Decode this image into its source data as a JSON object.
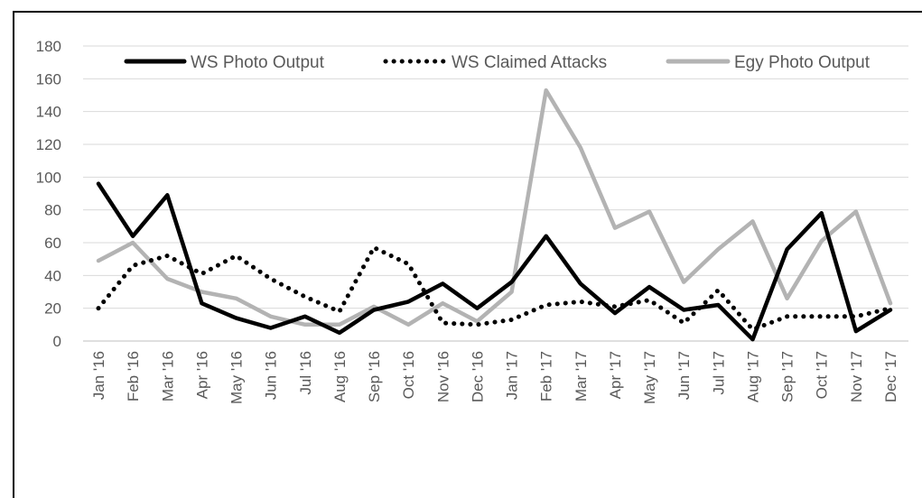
{
  "chart_data": {
    "type": "line",
    "title": "",
    "xlabel": "",
    "ylabel": "",
    "ylim": [
      0,
      180
    ],
    "yticks": [
      0,
      20,
      40,
      60,
      80,
      100,
      120,
      140,
      160,
      180
    ],
    "grid": true,
    "legend_position": "top",
    "categories": [
      "Jan '16",
      "Feb '16",
      "Mar '16",
      "Apr '16",
      "May '16",
      "Jun '16",
      "Jul '16",
      "Aug '16",
      "Sep '16",
      "Oct '16",
      "Nov '16",
      "Dec '16",
      "Jan '17",
      "Feb '17",
      "Mar '17",
      "Apr '17",
      "May '17",
      "Jun '17",
      "Jul '17",
      "Aug '17",
      "Sep '17",
      "Oct '17",
      "Nov '17",
      "Dec '17"
    ],
    "series": [
      {
        "name": "WS Photo Output",
        "color": "#000000",
        "style": "solid",
        "values": [
          96,
          64,
          89,
          23,
          14,
          8,
          15,
          5,
          19,
          24,
          35,
          20,
          36,
          64,
          35,
          17,
          33,
          19,
          22,
          1,
          56,
          78,
          6,
          19
        ]
      },
      {
        "name": "WS Claimed Attacks",
        "color": "#000000",
        "style": "dotted",
        "values": [
          20,
          46,
          52,
          41,
          52,
          38,
          27,
          18,
          57,
          47,
          11,
          10,
          13,
          22,
          24,
          21,
          25,
          11,
          31,
          7,
          15,
          15,
          15,
          20
        ]
      },
      {
        "name": "Egy Photo Output",
        "color": "#b3b3b3",
        "style": "solid",
        "values": [
          49,
          60,
          38,
          30,
          26,
          15,
          10,
          10,
          21,
          10,
          23,
          12,
          30,
          153,
          118,
          69,
          79,
          36,
          56,
          73,
          26,
          61,
          79,
          23
        ]
      }
    ]
  }
}
